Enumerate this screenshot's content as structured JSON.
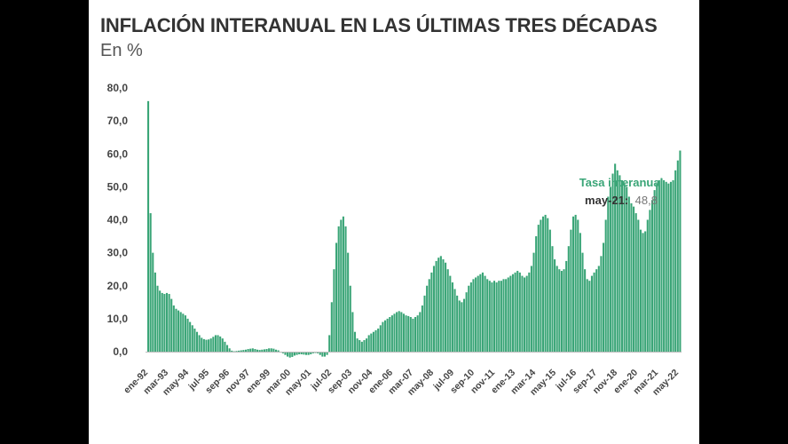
{
  "chart_data": {
    "type": "bar",
    "title": "INFLACIÓN INTERANUAL EN LAS ÚLTIMAS TRES DÉCADAS",
    "subtitle": "En %",
    "ylim": [
      0,
      80
    ],
    "yticks": [
      "80,0",
      "70,0",
      "60,0",
      "50,0",
      "40,0",
      "30,0",
      "20,0",
      "10,0",
      "0,0"
    ],
    "xticks": [
      "ene-92",
      "mar-93",
      "may-94",
      "jul-95",
      "sep-96",
      "nov-97",
      "ene-99",
      "mar-00",
      "may-01",
      "jul-02",
      "sep-03",
      "nov-04",
      "ene-06",
      "mar-07",
      "may-08",
      "jul-09",
      "sep-10",
      "nov-11",
      "ene-13",
      "mar-14",
      "may-15",
      "jul-16",
      "sep-17",
      "nov-18",
      "ene-20",
      "mar-21",
      "may-22"
    ],
    "bar_color": "#3aa577",
    "tooltip": {
      "series_name": "Tasa interanual",
      "date": "may-21",
      "date_label": "may-21:",
      "value_label": "48,8"
    },
    "series": [
      {
        "values": [
          76.0,
          42.0,
          30.0,
          24.0,
          20.0,
          18.5,
          17.8,
          17.5,
          17.8,
          17.5,
          16.0,
          14.0,
          13.0,
          12.5,
          12.0,
          11.5,
          11.0,
          10.0,
          9.0,
          8.0,
          7.0,
          6.0,
          5.0,
          4.2,
          3.8,
          3.6,
          3.7,
          4.0,
          4.5,
          5.0,
          5.0,
          4.6,
          4.0,
          3.0,
          2.0,
          1.0,
          0.3,
          0.1,
          0.2,
          0.3,
          0.4,
          0.5,
          0.6,
          0.8,
          0.9,
          1.0,
          0.8,
          0.6,
          0.5,
          0.6,
          0.7,
          0.8,
          1.0,
          1.0,
          0.9,
          0.6,
          0.4,
          0.0,
          -0.5,
          -1.0,
          -1.5,
          -1.8,
          -1.6,
          -1.2,
          -1.0,
          -0.8,
          -0.8,
          -0.9,
          -1.0,
          -1.0,
          -0.8,
          -0.5,
          -0.4,
          -0.5,
          -1.0,
          -1.5,
          -1.5,
          -1.0,
          5.0,
          15.0,
          25.0,
          33.0,
          38.0,
          40.0,
          41.0,
          38.0,
          30.0,
          20.0,
          12.0,
          6.0,
          4.0,
          3.5,
          3.0,
          3.5,
          4.0,
          5.0,
          5.5,
          6.0,
          6.5,
          7.0,
          8.0,
          9.0,
          9.5,
          10.0,
          10.5,
          11.0,
          11.5,
          12.0,
          12.3,
          12.0,
          11.5,
          11.0,
          10.8,
          10.5,
          10.0,
          10.5,
          11.0,
          12.0,
          14.0,
          17.0,
          20.0,
          22.0,
          24.0,
          26.0,
          27.5,
          28.5,
          29.0,
          28.0,
          27.0,
          25.0,
          23.0,
          21.0,
          19.0,
          17.0,
          15.5,
          15.0,
          16.0,
          18.0,
          20.0,
          21.0,
          22.0,
          22.5,
          23.0,
          23.5,
          24.0,
          23.0,
          22.0,
          21.5,
          21.0,
          21.5,
          21.0,
          21.5,
          21.5,
          22.0,
          22.0,
          22.5,
          23.0,
          23.5,
          24.0,
          24.5,
          24.0,
          23.0,
          22.5,
          23.0,
          24.0,
          26.0,
          30.0,
          35.0,
          38.5,
          40.0,
          41.0,
          41.5,
          40.5,
          37.0,
          32.0,
          28.0,
          26.0,
          25.0,
          24.5,
          25.0,
          27.5,
          32.0,
          37.0,
          41.0,
          41.5,
          40.0,
          36.0,
          30.0,
          25.0,
          22.0,
          21.5,
          23.0,
          24.0,
          25.0,
          26.0,
          29.0,
          33.0,
          40.0,
          47.0,
          50.0,
          54.0,
          57.0,
          55.0,
          53.5,
          52.0,
          51.0,
          50.0,
          47.0,
          45.0,
          44.0,
          42.0,
          40.0,
          37.0,
          36.0,
          36.5,
          40.0,
          43.0,
          46.0,
          49.0,
          51.0,
          52.0,
          52.5,
          52.0,
          51.5,
          51.0,
          51.5,
          52.0,
          55.0,
          58.0,
          61.0
        ]
      }
    ]
  }
}
